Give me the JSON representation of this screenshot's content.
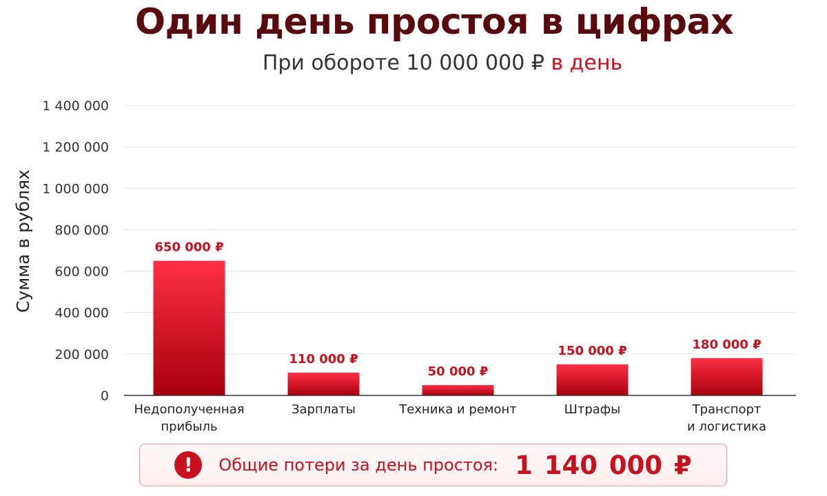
{
  "title": "Один день простоя в цифрах",
  "subtitle": {
    "main": "При обороте 10 000 000 ₽",
    "accent": "в день"
  },
  "colors": {
    "title": "#5a0a0e",
    "accent": "#c8101e",
    "bar_top": "#ff2f45",
    "bar_bottom": "#a8000d",
    "grid": "#e0e0e0"
  },
  "chart_data": {
    "type": "bar",
    "ylabel": "Сумма в рублях",
    "ylim": [
      0,
      1400000
    ],
    "y_ticks": [
      {
        "value": 0,
        "label": "0"
      },
      {
        "value": 200000,
        "label": "200 000"
      },
      {
        "value": 400000,
        "label": "400 000"
      },
      {
        "value": 600000,
        "label": "600 000"
      },
      {
        "value": 800000,
        "label": "800 000"
      },
      {
        "value": 1000000,
        "label": "1 000 000"
      },
      {
        "value": 1200000,
        "label": "1 200 000"
      },
      {
        "value": 1400000,
        "label": "1 400 000"
      }
    ],
    "grid": true,
    "categories": [
      [
        "Недополученная",
        "прибыль"
      ],
      [
        "Зарплаты"
      ],
      [
        "Техника и ремонт"
      ],
      [
        "Штрафы"
      ],
      [
        "Транспорт",
        "и логистика"
      ]
    ],
    "values": [
      650000,
      110000,
      50000,
      150000,
      180000
    ],
    "data_labels": [
      "650 000 ₽",
      "110 000 ₽",
      "50 000 ₽",
      "150 000 ₽",
      "180 000 ₽"
    ]
  },
  "total": {
    "icon": "exclamation-icon",
    "icon_glyph": "!",
    "label": "Общие потери за день простоя:",
    "value": "1 140 000 ₽"
  }
}
